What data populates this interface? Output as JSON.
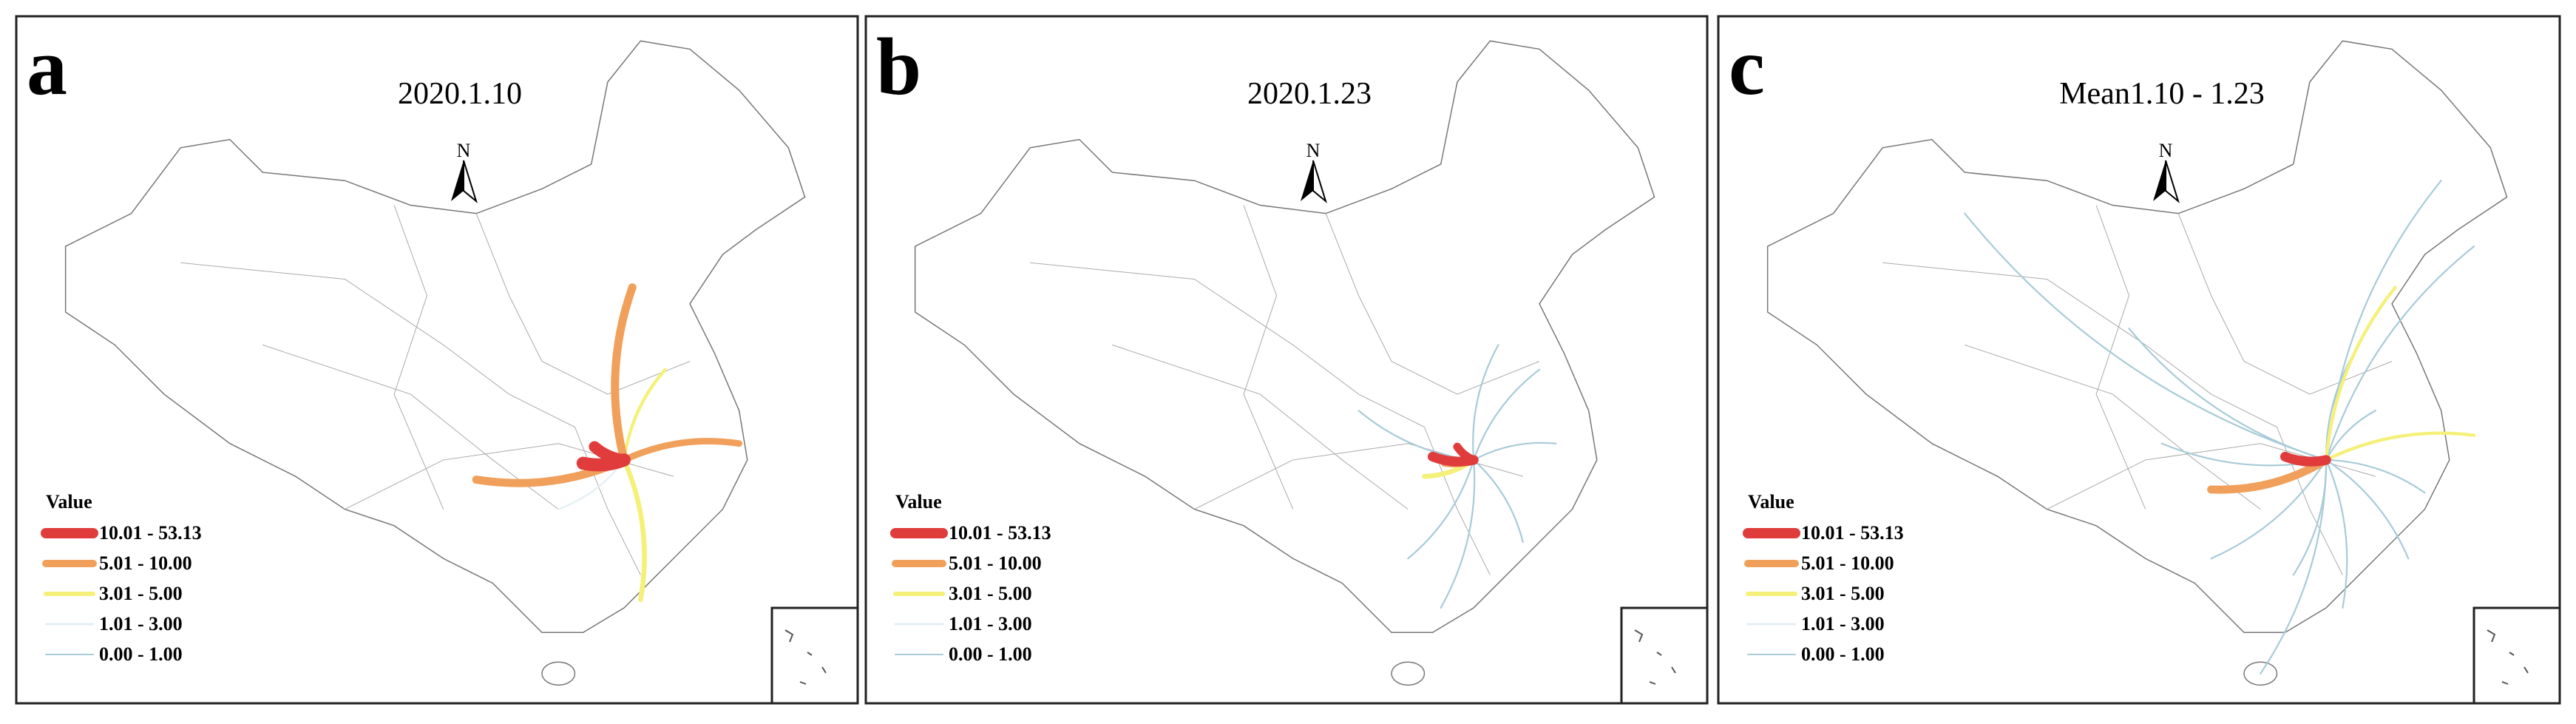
{
  "panels": [
    {
      "label": "a",
      "title": "2020.1.10",
      "north": "N",
      "legend": {
        "title": "Value",
        "items": [
          {
            "label": "10.01 - 53.13",
            "color": "#e03c3c"
          },
          {
            "label": "5.01 - 10.00",
            "color": "#f0a05a"
          },
          {
            "label": "3.01 - 5.00",
            "color": "#f5f07a"
          },
          {
            "label": "1.01 - 3.00",
            "color": "#e4eef4"
          },
          {
            "label": "0.00 - 1.00",
            "color": "#a8cbd8"
          }
        ]
      }
    },
    {
      "label": "b",
      "title": "2020.1.23",
      "north": "N",
      "legend": {
        "title": "Value",
        "items": [
          {
            "label": "10.01 - 53.13",
            "color": "#e03c3c"
          },
          {
            "label": "5.01 - 10.00",
            "color": "#f0a05a"
          },
          {
            "label": "3.01 - 5.00",
            "color": "#f5f07a"
          },
          {
            "label": "1.01 - 3.00",
            "color": "#e4eef4"
          },
          {
            "label": "0.00 - 1.00",
            "color": "#a8cbd8"
          }
        ]
      }
    },
    {
      "label": "c",
      "title": "Mean1.10 - 1.23",
      "north": "N",
      "legend": {
        "title": "Value",
        "items": [
          {
            "label": "10.01 - 53.13",
            "color": "#e03c3c"
          },
          {
            "label": "5.01 - 10.00",
            "color": "#f0a05a"
          },
          {
            "label": "3.01 - 5.00",
            "color": "#f5f07a"
          },
          {
            "label": "1.01 - 3.00",
            "color": "#e4eef4"
          },
          {
            "label": "0.00 - 1.00",
            "color": "#a8cbd8"
          }
        ]
      }
    }
  ]
}
